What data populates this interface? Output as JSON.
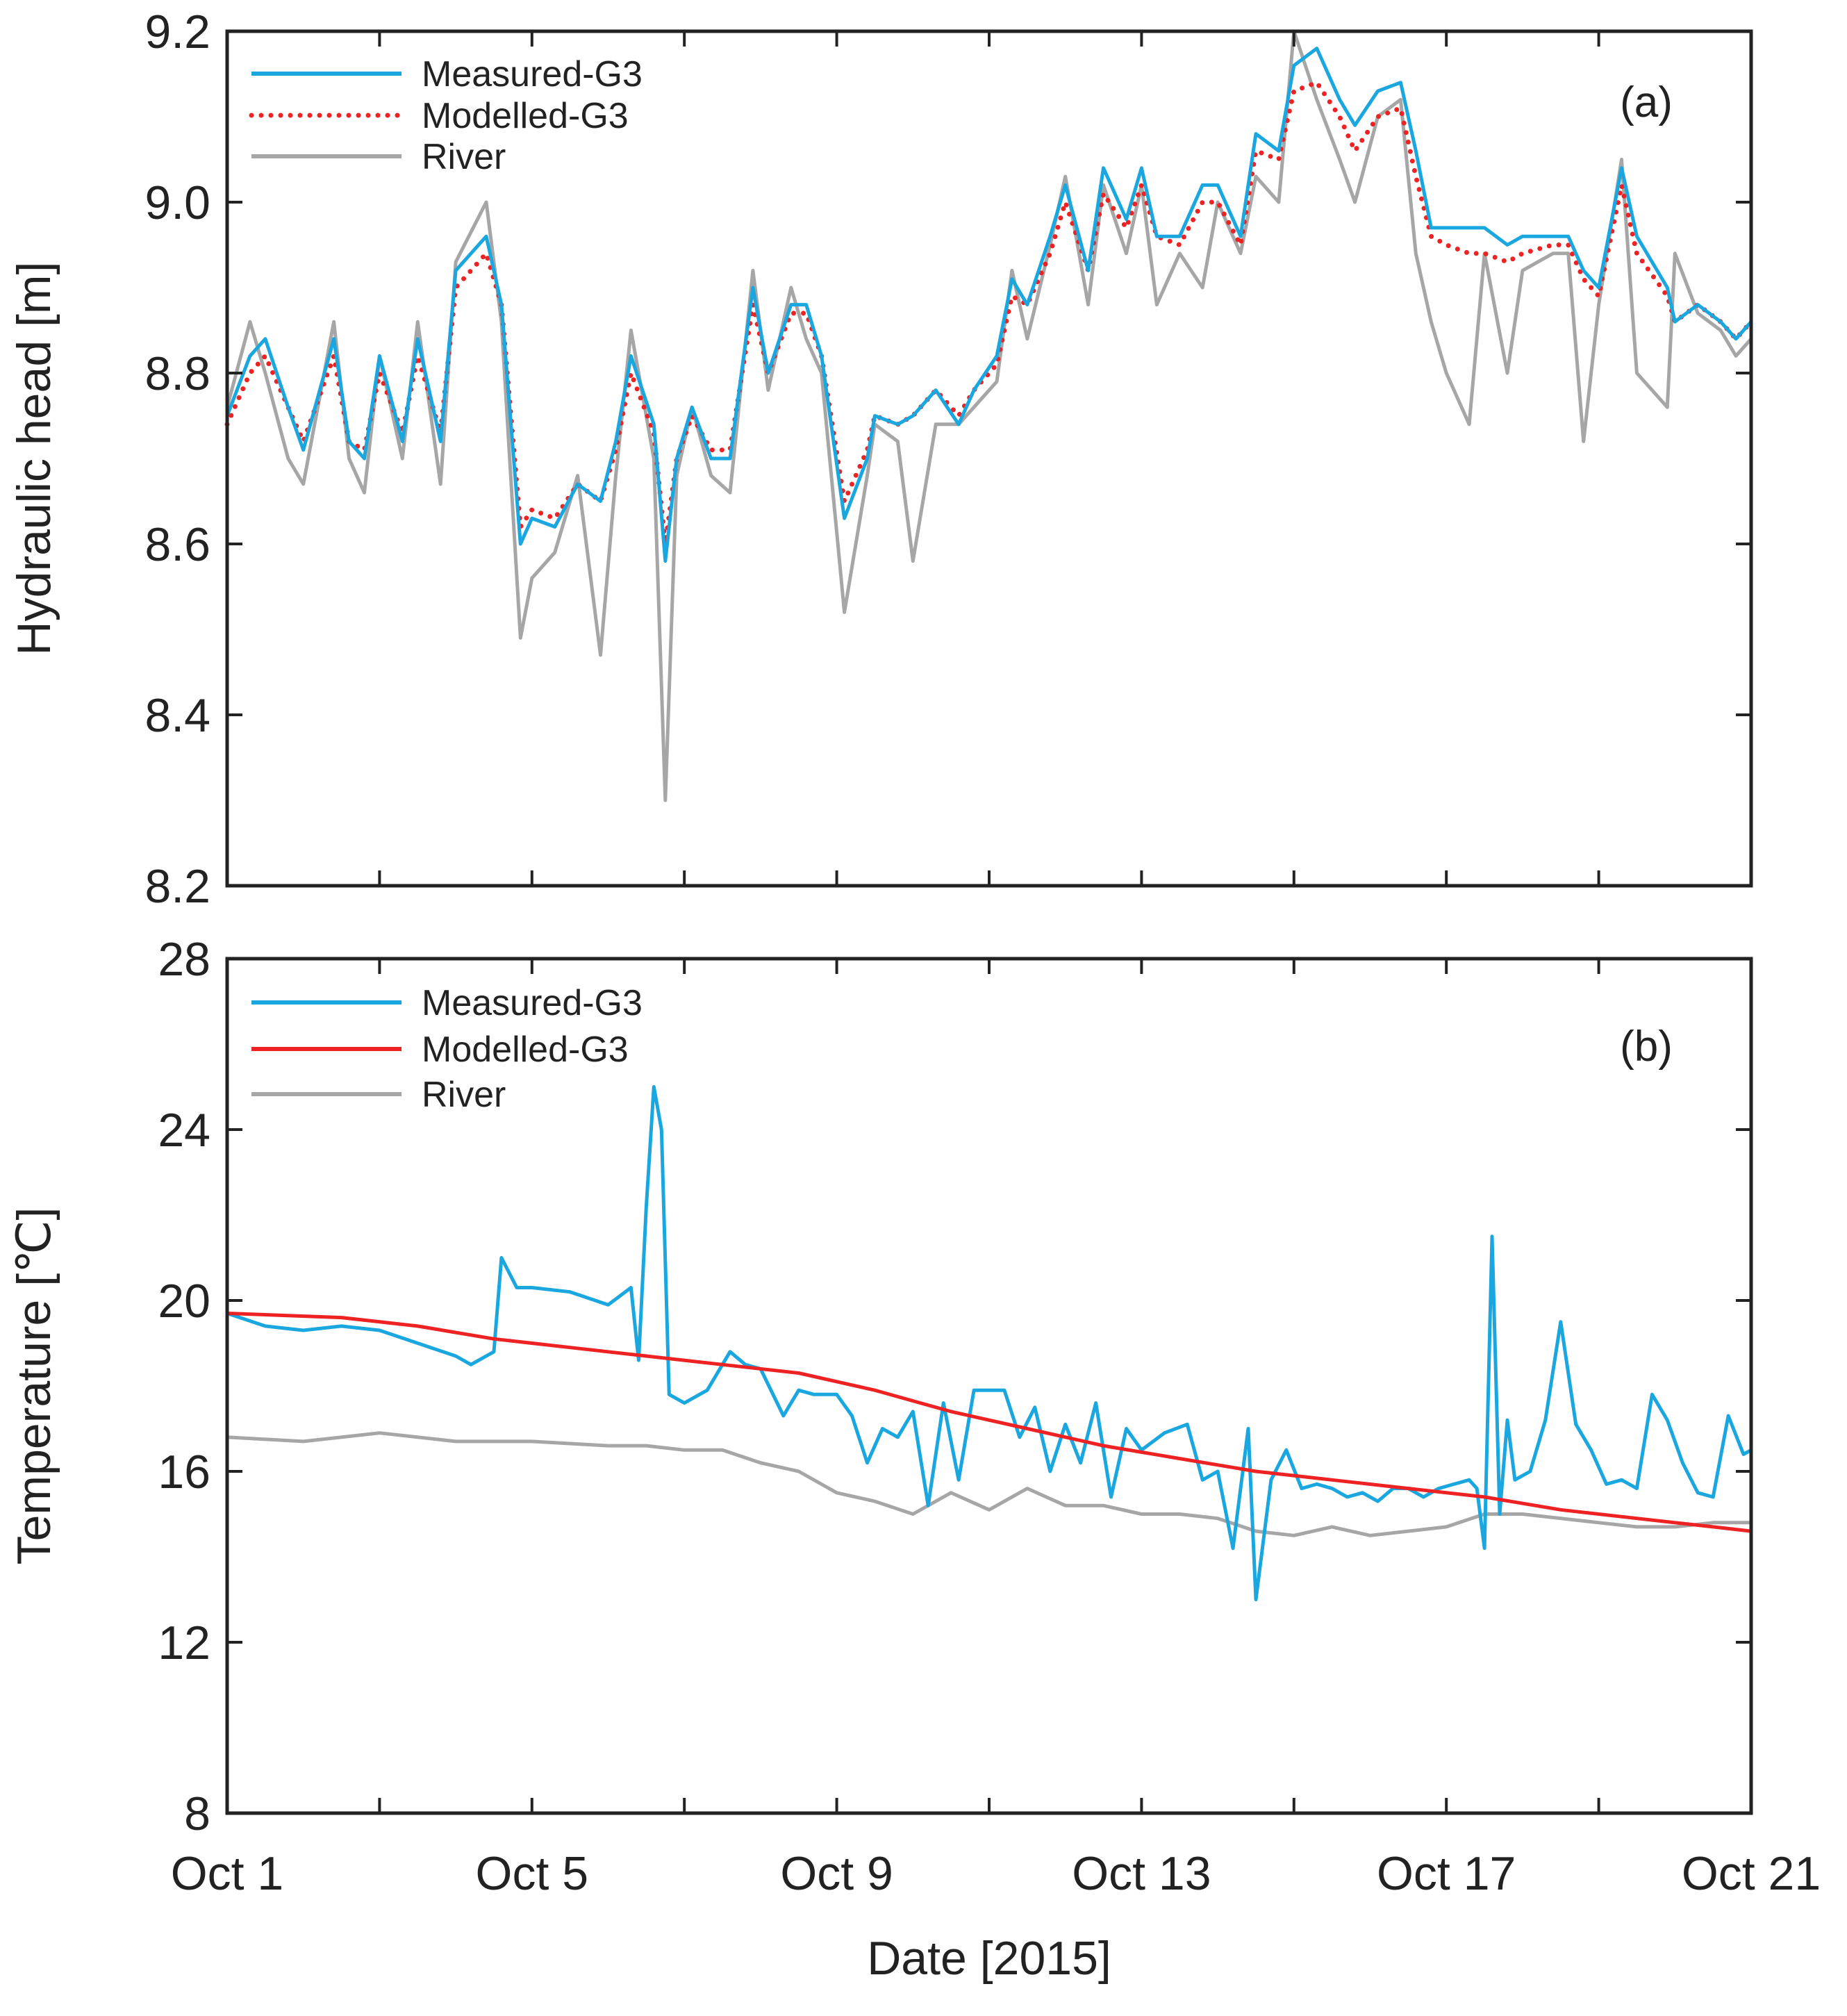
{
  "chart_data": [
    {
      "type": "line",
      "panel_label": "(a)",
      "xlabel": "",
      "ylabel": "Hydraulic head [m]",
      "xlim": [
        1,
        21
      ],
      "ylim": [
        8.2,
        9.2
      ],
      "yticks": [
        "8.2",
        "8.4",
        "8.6",
        "8.8",
        "9.0",
        "9.2"
      ],
      "ytick_values": [
        8.2,
        8.4,
        8.6,
        8.8,
        9.0,
        9.2
      ],
      "xtick_values": [
        1,
        3,
        5,
        7,
        9,
        11,
        13,
        15,
        17,
        19,
        21
      ],
      "legend_position": "top-left",
      "series": [
        {
          "name": "Measured-G3",
          "color": "#1aa7e0",
          "style": "solid",
          "x": [
            1.0,
            1.3,
            1.5,
            1.8,
            2.0,
            2.4,
            2.6,
            2.8,
            3.0,
            3.3,
            3.5,
            3.8,
            4.0,
            4.4,
            4.6,
            4.85,
            5.0,
            5.3,
            5.6,
            5.9,
            6.1,
            6.3,
            6.6,
            6.75,
            6.9,
            7.1,
            7.35,
            7.6,
            7.9,
            8.1,
            8.4,
            8.6,
            8.8,
            9.1,
            9.4,
            9.5,
            9.8,
            10.0,
            10.3,
            10.6,
            10.8,
            11.1,
            11.3,
            11.5,
            11.8,
            12.0,
            12.3,
            12.5,
            12.8,
            13.0,
            13.2,
            13.5,
            13.8,
            14.0,
            14.3,
            14.5,
            14.8,
            15.0,
            15.3,
            15.6,
            15.8,
            16.1,
            16.4,
            16.6,
            16.8,
            17.0,
            17.3,
            17.5,
            17.8,
            18.0,
            18.4,
            18.6,
            18.8,
            19.0,
            19.3,
            19.5,
            19.9,
            20.0,
            20.3,
            20.6,
            20.8,
            21.0
          ],
          "y": [
            8.75,
            8.82,
            8.84,
            8.76,
            8.71,
            8.84,
            8.72,
            8.7,
            8.82,
            8.72,
            8.84,
            8.72,
            8.92,
            8.96,
            8.88,
            8.6,
            8.63,
            8.62,
            8.67,
            8.65,
            8.72,
            8.82,
            8.74,
            8.58,
            8.7,
            8.76,
            8.7,
            8.7,
            8.9,
            8.8,
            8.88,
            8.88,
            8.82,
            8.63,
            8.7,
            8.75,
            8.74,
            8.75,
            8.78,
            8.74,
            8.78,
            8.82,
            8.91,
            8.88,
            8.96,
            9.02,
            8.92,
            9.04,
            8.98,
            9.04,
            8.96,
            8.96,
            9.02,
            9.02,
            8.96,
            9.08,
            9.06,
            9.16,
            9.18,
            9.12,
            9.09,
            9.13,
            9.14,
            9.06,
            8.97,
            8.97,
            8.97,
            8.97,
            8.95,
            8.96,
            8.96,
            8.96,
            8.92,
            8.9,
            9.04,
            8.96,
            8.9,
            8.86,
            8.88,
            8.86,
            8.84,
            8.86
          ]
        },
        {
          "name": "Modelled-G3",
          "color": "#ee2222",
          "style": "dotted",
          "x": [
            1.0,
            1.3,
            1.5,
            1.8,
            2.0,
            2.4,
            2.6,
            2.8,
            3.0,
            3.3,
            3.5,
            3.8,
            4.0,
            4.4,
            4.6,
            4.85,
            5.0,
            5.3,
            5.6,
            5.9,
            6.1,
            6.3,
            6.6,
            6.75,
            6.9,
            7.1,
            7.35,
            7.6,
            7.9,
            8.1,
            8.4,
            8.6,
            8.8,
            9.1,
            9.4,
            9.5,
            9.8,
            10.0,
            10.3,
            10.6,
            10.8,
            11.1,
            11.3,
            11.5,
            11.8,
            12.0,
            12.3,
            12.5,
            12.8,
            13.0,
            13.2,
            13.5,
            13.8,
            14.0,
            14.3,
            14.5,
            14.8,
            15.0,
            15.3,
            15.6,
            15.8,
            16.1,
            16.4,
            16.6,
            16.8,
            17.0,
            17.3,
            17.5,
            17.8,
            18.0,
            18.4,
            18.6,
            18.8,
            19.0,
            19.3,
            19.5,
            19.9,
            20.0,
            20.3,
            20.6,
            20.8,
            21.0
          ],
          "y": [
            8.74,
            8.8,
            8.82,
            8.76,
            8.72,
            8.82,
            8.72,
            8.71,
            8.8,
            8.73,
            8.82,
            8.73,
            8.9,
            8.94,
            8.88,
            8.62,
            8.64,
            8.63,
            8.67,
            8.65,
            8.71,
            8.8,
            8.73,
            8.6,
            8.7,
            8.75,
            8.71,
            8.71,
            8.88,
            8.8,
            8.87,
            8.87,
            8.82,
            8.65,
            8.71,
            8.75,
            8.74,
            8.75,
            8.78,
            8.75,
            8.78,
            8.81,
            8.89,
            8.88,
            8.94,
            9.0,
            8.92,
            9.01,
            8.97,
            9.02,
            8.96,
            8.95,
            9.0,
            9.0,
            8.95,
            9.06,
            9.05,
            9.13,
            9.14,
            9.1,
            9.06,
            9.1,
            9.11,
            9.03,
            8.96,
            8.95,
            8.94,
            8.94,
            8.93,
            8.94,
            8.95,
            8.95,
            8.91,
            8.89,
            9.02,
            8.94,
            8.89,
            8.86,
            8.88,
            8.86,
            8.84,
            8.86
          ]
        },
        {
          "name": "River",
          "color": "#a6a6a6",
          "style": "solid",
          "x": [
            1.0,
            1.3,
            1.5,
            1.8,
            2.0,
            2.4,
            2.6,
            2.8,
            3.0,
            3.3,
            3.5,
            3.8,
            4.0,
            4.4,
            4.6,
            4.85,
            5.0,
            5.3,
            5.6,
            5.9,
            6.1,
            6.3,
            6.6,
            6.75,
            6.9,
            7.1,
            7.35,
            7.6,
            7.9,
            8.1,
            8.4,
            8.6,
            8.8,
            9.1,
            9.4,
            9.5,
            9.8,
            10.0,
            10.3,
            10.6,
            10.8,
            11.1,
            11.3,
            11.5,
            11.8,
            12.0,
            12.3,
            12.5,
            12.8,
            13.0,
            13.2,
            13.5,
            13.8,
            14.0,
            14.3,
            14.5,
            14.8,
            15.0,
            15.3,
            15.6,
            15.8,
            16.1,
            16.4,
            16.6,
            16.8,
            17.0,
            17.3,
            17.5,
            17.8,
            18.0,
            18.4,
            18.6,
            18.8,
            19.0,
            19.3,
            19.5,
            19.9,
            20.0,
            20.3,
            20.6,
            20.8,
            21.0
          ],
          "y": [
            8.76,
            8.86,
            8.8,
            8.7,
            8.67,
            8.86,
            8.7,
            8.66,
            8.82,
            8.7,
            8.86,
            8.67,
            8.93,
            9.0,
            8.86,
            8.49,
            8.56,
            8.59,
            8.68,
            8.47,
            8.68,
            8.85,
            8.7,
            8.3,
            8.68,
            8.76,
            8.68,
            8.66,
            8.92,
            8.78,
            8.9,
            8.84,
            8.8,
            8.52,
            8.68,
            8.74,
            8.72,
            8.58,
            8.74,
            8.74,
            8.76,
            8.79,
            8.92,
            8.84,
            8.95,
            9.03,
            8.88,
            9.02,
            8.94,
            9.02,
            8.88,
            8.94,
            8.9,
            9.0,
            8.94,
            9.03,
            9.0,
            9.2,
            9.12,
            9.05,
            9.0,
            9.1,
            9.12,
            8.94,
            8.86,
            8.8,
            8.74,
            8.94,
            8.8,
            8.92,
            8.94,
            8.94,
            8.72,
            8.88,
            9.05,
            8.8,
            8.76,
            8.94,
            8.87,
            8.85,
            8.82,
            8.84
          ]
        }
      ]
    },
    {
      "type": "line",
      "panel_label": "(b)",
      "xlabel": "Date [2015]",
      "ylabel": "Temperature [℃]",
      "xlim": [
        1,
        21
      ],
      "ylim": [
        8,
        28
      ],
      "yticks": [
        "8",
        "12",
        "16",
        "20",
        "24",
        "28"
      ],
      "ytick_values": [
        8,
        12,
        16,
        20,
        24,
        28
      ],
      "xtick_values": [
        1,
        3,
        5,
        7,
        9,
        11,
        13,
        15,
        17,
        19,
        21
      ],
      "xtick_labels": [
        "Oct 1",
        "Oct 5",
        "Oct 9",
        "Oct 13",
        "Oct 17",
        "Oct 21"
      ],
      "xtick_label_values": [
        1,
        5,
        9,
        13,
        17,
        21
      ],
      "legend_position": "top-left",
      "series": [
        {
          "name": "Measured-G3",
          "color": "#1aa7e0",
          "style": "solid",
          "x": [
            1.0,
            1.5,
            2.0,
            2.5,
            3.0,
            3.5,
            4.0,
            4.2,
            4.5,
            4.6,
            4.8,
            5.0,
            5.5,
            6.0,
            6.3,
            6.4,
            6.5,
            6.6,
            6.7,
            6.8,
            7.0,
            7.3,
            7.6,
            7.8,
            8.0,
            8.3,
            8.5,
            8.7,
            9.0,
            9.2,
            9.4,
            9.6,
            9.8,
            10.0,
            10.2,
            10.4,
            10.6,
            10.8,
            11.0,
            11.2,
            11.4,
            11.6,
            11.8,
            12.0,
            12.2,
            12.4,
            12.6,
            12.8,
            13.0,
            13.3,
            13.6,
            13.8,
            14.0,
            14.2,
            14.4,
            14.5,
            14.7,
            14.9,
            15.1,
            15.3,
            15.5,
            15.7,
            15.9,
            16.1,
            16.3,
            16.5,
            16.7,
            16.9,
            17.1,
            17.3,
            17.4,
            17.5,
            17.6,
            17.7,
            17.8,
            17.9,
            18.1,
            18.3,
            18.5,
            18.7,
            18.9,
            19.1,
            19.3,
            19.5,
            19.7,
            19.9,
            20.1,
            20.3,
            20.5,
            20.7,
            20.9,
            21.0
          ],
          "y": [
            19.7,
            19.4,
            19.3,
            19.4,
            19.3,
            19.0,
            18.7,
            18.5,
            18.8,
            21.0,
            20.3,
            20.3,
            20.2,
            19.9,
            20.3,
            18.6,
            22.2,
            25.0,
            24.0,
            17.8,
            17.6,
            17.9,
            18.8,
            18.5,
            18.4,
            17.3,
            17.9,
            17.8,
            17.8,
            17.3,
            16.2,
            17.0,
            16.8,
            17.4,
            15.2,
            17.6,
            15.8,
            17.9,
            17.9,
            17.9,
            16.8,
            17.5,
            16.0,
            17.1,
            16.2,
            17.6,
            15.4,
            17.0,
            16.5,
            16.9,
            17.1,
            15.8,
            16.0,
            14.2,
            17.0,
            13.0,
            15.8,
            16.5,
            15.6,
            15.7,
            15.6,
            15.4,
            15.5,
            15.3,
            15.6,
            15.6,
            15.4,
            15.6,
            15.7,
            15.8,
            15.6,
            14.2,
            21.5,
            15.0,
            17.2,
            15.8,
            16.0,
            17.2,
            19.5,
            17.1,
            16.5,
            15.7,
            15.8,
            15.6,
            17.8,
            17.2,
            16.2,
            15.5,
            15.4,
            17.3,
            16.4,
            16.5
          ]
        },
        {
          "name": "Modelled-G3",
          "color": "#ee2222",
          "style": "solid",
          "x": [
            1.0,
            2.5,
            3.5,
            4.5,
            5.5,
            6.5,
            7.5,
            8.5,
            9.5,
            10.5,
            11.5,
            12.5,
            13.5,
            14.5,
            15.5,
            16.5,
            17.5,
            18.5,
            19.5,
            20.5,
            21.0
          ],
          "y": [
            19.7,
            19.6,
            19.4,
            19.1,
            18.9,
            18.7,
            18.5,
            18.3,
            17.9,
            17.4,
            17.0,
            16.6,
            16.3,
            16.0,
            15.8,
            15.6,
            15.4,
            15.1,
            14.9,
            14.7,
            14.6
          ]
        },
        {
          "name": "River",
          "color": "#a6a6a6",
          "style": "solid",
          "x": [
            1.0,
            2.0,
            3.0,
            4.0,
            5.0,
            6.0,
            6.5,
            7.0,
            7.5,
            8.0,
            8.5,
            9.0,
            9.5,
            10.0,
            10.5,
            11.0,
            11.5,
            12.0,
            12.5,
            13.0,
            13.5,
            14.0,
            14.5,
            15.0,
            15.5,
            16.0,
            16.5,
            17.0,
            17.5,
            18.0,
            18.5,
            19.0,
            19.5,
            20.0,
            20.5,
            21.0
          ],
          "y": [
            16.8,
            16.7,
            16.9,
            16.7,
            16.7,
            16.6,
            16.6,
            16.5,
            16.5,
            16.2,
            16.0,
            15.5,
            15.3,
            15.0,
            15.5,
            15.1,
            15.6,
            15.2,
            15.2,
            15.0,
            15.0,
            14.9,
            14.6,
            14.5,
            14.7,
            14.5,
            14.6,
            14.7,
            15.0,
            15.0,
            14.9,
            14.8,
            14.7,
            14.7,
            14.8,
            14.8
          ]
        }
      ]
    }
  ]
}
